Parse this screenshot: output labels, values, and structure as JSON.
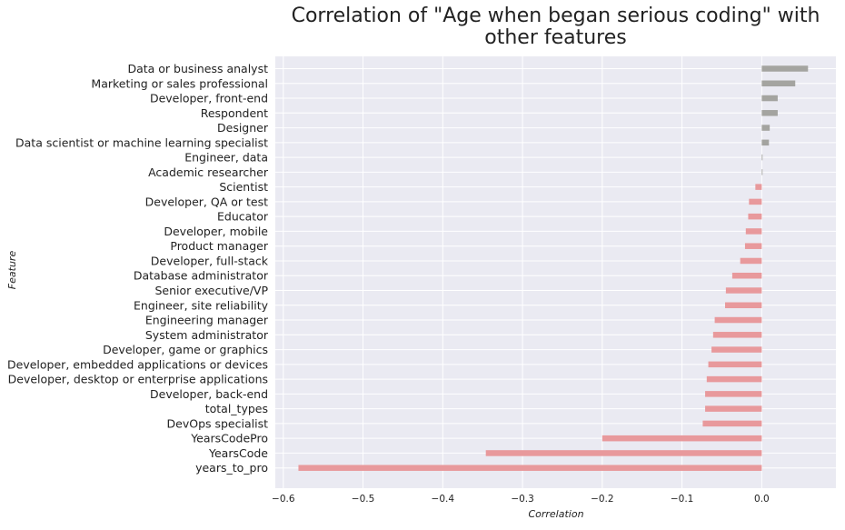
{
  "chart_data": {
    "type": "bar",
    "orientation": "horizontal",
    "title": "Correlation of \"Age when began serious coding\" with\nother features",
    "xlabel": "Correlation",
    "ylabel": "Feature",
    "xlim": [
      -0.61,
      0.093
    ],
    "xticks": [
      -0.6,
      -0.5,
      -0.4,
      -0.3,
      -0.2,
      -0.1,
      0.0
    ],
    "xtick_labels": [
      "−0.6",
      "−0.5",
      "−0.4",
      "−0.3",
      "−0.2",
      "−0.1",
      "0.0"
    ],
    "grid": true,
    "categories": [
      "Data or business analyst",
      "Marketing or sales professional",
      "Developer, front-end",
      "Respondent",
      "Designer",
      "Data scientist or machine learning specialist",
      "Engineer, data",
      "Academic researcher",
      "Scientist",
      "Developer, QA or test",
      "Educator",
      "Developer, mobile",
      "Product manager",
      "Developer, full-stack",
      "Database administrator",
      "Senior executive/VP",
      "Engineer, site reliability",
      "Engineering manager",
      "System administrator",
      "Developer, game or graphics",
      "Developer, embedded applications or devices",
      "Developer, desktop or enterprise applications",
      "Developer, back-end",
      "total_types",
      "DevOps specialist",
      "YearsCodePro",
      "YearsCode",
      "years_to_pro"
    ],
    "values": [
      0.058,
      0.042,
      0.02,
      0.02,
      0.01,
      0.009,
      0.001,
      0.001,
      -0.008,
      -0.016,
      -0.017,
      -0.02,
      -0.021,
      -0.027,
      -0.037,
      -0.045,
      -0.046,
      -0.059,
      -0.061,
      -0.063,
      -0.067,
      -0.069,
      -0.071,
      -0.071,
      -0.074,
      -0.2,
      -0.346,
      -0.581
    ],
    "colors": {
      "positive": "#a4a4a0",
      "negative": "#e8999c"
    },
    "style": {
      "background": "#eaeaf2",
      "gridline": "#ffffff"
    }
  }
}
